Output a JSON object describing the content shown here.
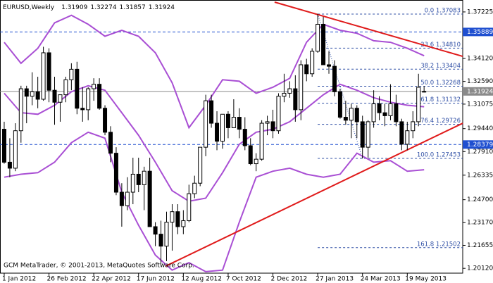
{
  "chart_data": {
    "type": "candlestick",
    "title": "EURUSD,Weekly",
    "footer": "GCM MetaTrader, © 2001-2013, MetaQuotes Software Corp.",
    "xlim": [
      -0.75,
      81.9
    ],
    "xticks": [
      {
        "value": 0,
        "label": "1 Jan 2012"
      },
      {
        "value": 8,
        "label": "26 Feb 2012"
      },
      {
        "value": 16,
        "label": "22 Apr 2012"
      },
      {
        "value": 24,
        "label": "17 Jun 2012"
      },
      {
        "value": 32,
        "label": "12 Aug 2012"
      },
      {
        "value": 40,
        "label": "7 Oct 2012"
      },
      {
        "value": 48,
        "label": "2 Dec 2012"
      },
      {
        "value": 56,
        "label": "27 Jan 2013"
      },
      {
        "value": 64,
        "label": "24 Mar 2013"
      },
      {
        "value": 72,
        "label": "19 May 2013"
      }
    ],
    "ylim": [
      1.198,
      1.3802
    ],
    "yticks": [
      1.37225,
      {
        "value": 1.3412,
        "label": "1.34120"
      },
      {
        "value": 1.3259,
        "label": "1.32590"
      },
      1.31075,
      {
        "value": 1.2944,
        "label": "1.29440"
      },
      {
        "value": 1.2791,
        "label": "1.27910"
      },
      1.26335,
      {
        "value": 1.247,
        "label": "1.24700"
      },
      {
        "value": 1.2317,
        "label": "1.23170"
      },
      1.21655,
      {
        "value": 1.2012,
        "label": "1.20120"
      }
    ],
    "up_color": "#ffffff",
    "down_color": "#000000",
    "ohlc": [
      [
        1.294,
        1.299,
        1.271,
        1.272
      ],
      [
        1.272,
        1.288,
        1.262,
        1.268
      ],
      [
        1.268,
        1.298,
        1.266,
        1.293
      ],
      [
        1.293,
        1.323,
        1.285,
        1.321
      ],
      [
        1.321,
        1.323,
        1.298,
        1.316
      ],
      [
        1.316,
        1.332,
        1.31,
        1.319
      ],
      [
        1.319,
        1.329,
        1.308,
        1.314
      ],
      [
        1.314,
        1.349,
        1.313,
        1.345
      ],
      [
        1.345,
        1.348,
        1.312,
        1.32
      ],
      [
        1.32,
        1.329,
        1.297,
        1.312
      ],
      [
        1.312,
        1.317,
        1.299,
        1.317
      ],
      [
        1.317,
        1.329,
        1.312,
        1.327
      ],
      [
        1.327,
        1.338,
        1.32,
        1.334
      ],
      [
        1.334,
        1.339,
        1.304,
        1.308
      ],
      [
        1.308,
        1.322,
        1.299,
        1.307
      ],
      [
        1.307,
        1.322,
        1.3,
        1.321
      ],
      [
        1.321,
        1.328,
        1.313,
        1.324
      ],
      [
        1.324,
        1.328,
        1.307,
        1.308
      ],
      [
        1.308,
        1.31,
        1.29,
        1.292
      ],
      [
        1.292,
        1.296,
        1.272,
        1.278
      ],
      [
        1.278,
        1.282,
        1.25,
        1.252
      ],
      [
        1.252,
        1.258,
        1.229,
        1.243
      ],
      [
        1.243,
        1.262,
        1.24,
        1.252
      ],
      [
        1.252,
        1.275,
        1.244,
        1.264
      ],
      [
        1.264,
        1.275,
        1.252,
        1.257
      ],
      [
        1.257,
        1.269,
        1.24,
        1.266
      ],
      [
        1.266,
        1.275,
        1.229,
        1.229
      ],
      [
        1.229,
        1.232,
        1.216,
        1.224
      ],
      [
        1.224,
        1.233,
        1.204,
        1.216
      ],
      [
        1.216,
        1.239,
        1.206,
        1.232
      ],
      [
        1.232,
        1.244,
        1.213,
        1.239
      ],
      [
        1.239,
        1.244,
        1.224,
        1.229
      ],
      [
        1.229,
        1.24,
        1.224,
        1.233
      ],
      [
        1.233,
        1.257,
        1.232,
        1.251
      ],
      [
        1.251,
        1.263,
        1.248,
        1.258
      ],
      [
        1.258,
        1.282,
        1.256,
        1.282
      ],
      [
        1.282,
        1.317,
        1.276,
        1.313
      ],
      [
        1.313,
        1.317,
        1.295,
        1.298
      ],
      [
        1.298,
        1.306,
        1.28,
        1.286
      ],
      [
        1.286,
        1.304,
        1.281,
        1.304
      ],
      [
        1.304,
        1.306,
        1.288,
        1.295
      ],
      [
        1.295,
        1.314,
        1.295,
        1.302
      ],
      [
        1.302,
        1.308,
        1.288,
        1.294
      ],
      [
        1.294,
        1.302,
        1.28,
        1.283
      ],
      [
        1.283,
        1.288,
        1.27,
        1.271
      ],
      [
        1.271,
        1.278,
        1.266,
        1.274
      ],
      [
        1.274,
        1.3,
        1.273,
        1.298
      ],
      [
        1.298,
        1.303,
        1.29,
        1.299
      ],
      [
        1.299,
        1.307,
        1.288,
        1.293
      ],
      [
        1.293,
        1.318,
        1.291,
        1.316
      ],
      [
        1.316,
        1.331,
        1.312,
        1.318
      ],
      [
        1.318,
        1.326,
        1.315,
        1.321
      ],
      [
        1.321,
        1.33,
        1.299,
        1.307
      ],
      [
        1.307,
        1.34,
        1.3,
        1.337
      ],
      [
        1.337,
        1.341,
        1.326,
        1.331
      ],
      [
        1.331,
        1.348,
        1.329,
        1.346
      ],
      [
        1.346,
        1.371,
        1.345,
        1.364
      ],
      [
        1.364,
        1.369,
        1.337,
        1.337
      ],
      [
        1.337,
        1.346,
        1.331,
        1.336
      ],
      [
        1.336,
        1.34,
        1.316,
        1.319
      ],
      [
        1.319,
        1.321,
        1.301,
        1.302
      ],
      [
        1.302,
        1.313,
        1.297,
        1.3
      ],
      [
        1.3,
        1.311,
        1.288,
        1.308
      ],
      [
        1.308,
        1.31,
        1.288,
        1.299
      ],
      [
        1.299,
        1.303,
        1.2745,
        1.282
      ],
      [
        1.282,
        1.3,
        1.275,
        1.299
      ],
      [
        1.299,
        1.32,
        1.295,
        1.311
      ],
      [
        1.311,
        1.316,
        1.3,
        1.305
      ],
      [
        1.305,
        1.311,
        1.296,
        1.303
      ],
      [
        1.303,
        1.324,
        1.3,
        1.311
      ],
      [
        1.311,
        1.317,
        1.296,
        1.299
      ],
      [
        1.299,
        1.301,
        1.28,
        1.284
      ],
      [
        1.284,
        1.299,
        1.28,
        1.293
      ],
      [
        1.293,
        1.306,
        1.288,
        1.299
      ],
      [
        1.299,
        1.331,
        1.296,
        1.322
      ],
      [
        1.31909,
        1.32274,
        1.31857,
        1.31924
      ]
    ],
    "bands": {
      "color": "#a94fd4",
      "x": [
        0,
        3,
        6,
        9,
        12,
        15,
        18,
        21,
        24,
        27,
        30,
        33,
        36,
        39,
        42,
        45,
        48,
        51,
        54,
        57,
        60,
        63,
        66,
        69,
        72,
        75
      ],
      "upper": [
        1.352,
        1.338,
        1.348,
        1.365,
        1.37,
        1.364,
        1.356,
        1.36,
        1.356,
        1.345,
        1.325,
        1.295,
        1.31,
        1.327,
        1.326,
        1.318,
        1.322,
        1.328,
        1.352,
        1.364,
        1.36,
        1.358,
        1.353,
        1.352,
        1.348,
        1.343
      ],
      "middle": [
        1.318,
        1.305,
        1.304,
        1.31,
        1.319,
        1.323,
        1.32,
        1.305,
        1.29,
        1.272,
        1.253,
        1.246,
        1.248,
        1.265,
        1.284,
        1.292,
        1.294,
        1.299,
        1.308,
        1.317,
        1.324,
        1.32,
        1.315,
        1.312,
        1.31,
        1.309
      ],
      "lower": [
        1.262,
        1.264,
        1.265,
        1.272,
        1.285,
        1.292,
        1.288,
        1.252,
        1.23,
        1.21,
        1.2,
        1.205,
        1.199,
        1.2,
        1.232,
        1.262,
        1.266,
        1.268,
        1.264,
        1.262,
        1.264,
        1.278,
        1.272,
        1.273,
        1.266,
        1.267
      ]
    },
    "trendlines": [
      {
        "color": "#e01b1b",
        "x": [
          48.3,
          81.9
        ],
        "y": [
          1.3788,
          1.3426
        ]
      },
      {
        "color": "#e01b1b",
        "x": [
          28.8,
          81.9
        ],
        "y": [
          1.2026,
          1.298
        ]
      }
    ],
    "fibonacci": {
      "color": "#2f4fa5",
      "x": [
        56,
        64
      ],
      "levels": [
        {
          "value": 1.37083,
          "label": "0.0 1.37083"
        },
        {
          "value": 1.3481,
          "label": "23.6 1.34810"
        },
        {
          "value": 1.33404,
          "label": "38.2 1.33404"
        },
        {
          "value": 1.32268,
          "label": "50.0 1.32268"
        },
        {
          "value": 1.31132,
          "label": "61.8 1.31132"
        },
        {
          "value": 1.29726,
          "label": "76.4 1.29726"
        },
        {
          "value": 1.27453,
          "label": "100.0 1.27453"
        },
        {
          "value": 1.21502,
          "label": "161.8 1.21502"
        }
      ]
    },
    "price_lines": [
      {
        "value": 1.35889,
        "color": "#1f4fd0",
        "dashed": true
      },
      {
        "value": 1.31924,
        "color": "#8a8a8a",
        "dashed": false
      },
      {
        "value": 1.28379,
        "color": "#1f4fd0",
        "dashed": true
      }
    ]
  }
}
